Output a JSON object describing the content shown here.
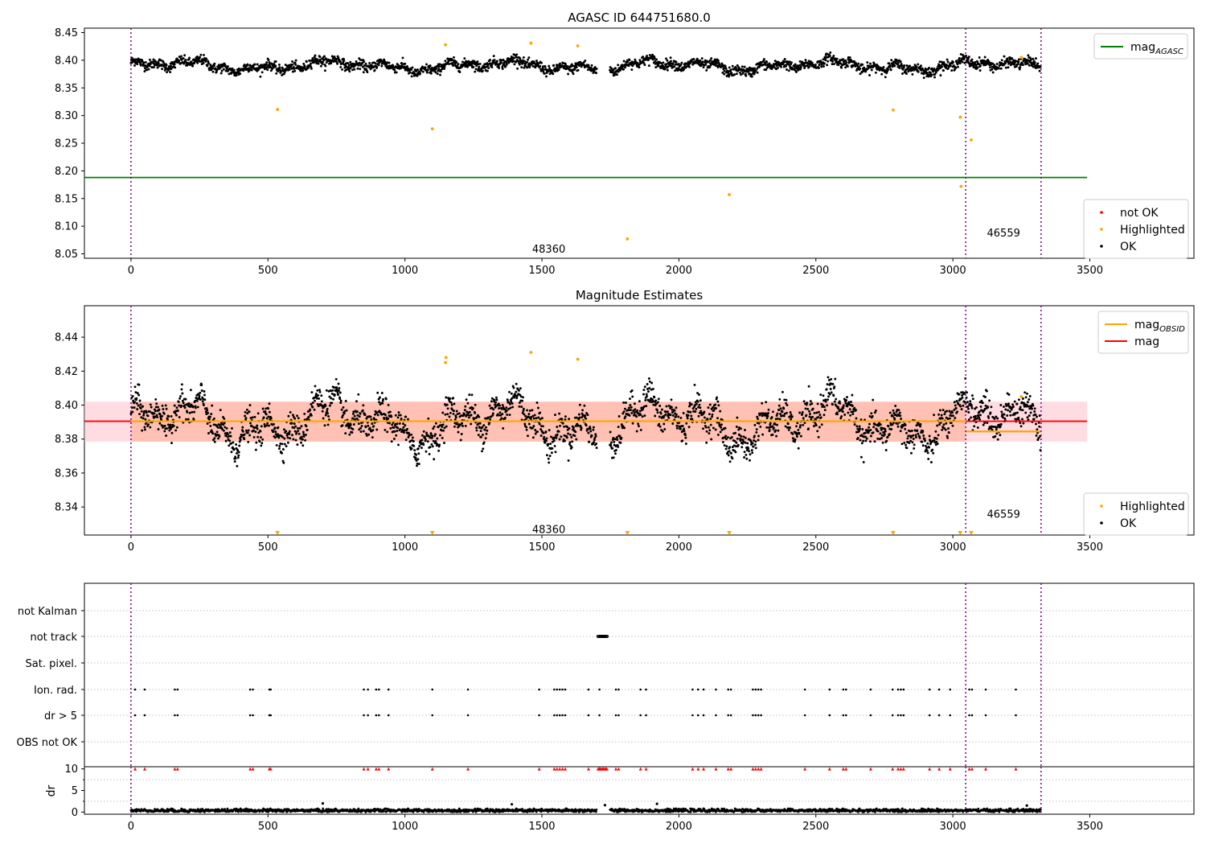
{
  "figure": {
    "background": "#ffffff"
  },
  "colors": {
    "ok": "#000000",
    "highlighted": "#ffa500",
    "not_ok": "#ff0000",
    "agasc": "#008000",
    "mag": "#ff0000",
    "obsid": "#ffa500",
    "vline": "#800080",
    "band_outer": "#ffc0cb",
    "band_inner": "#ffa07a"
  },
  "chart_data": [
    {
      "type": "scatter",
      "title": "AGASC ID 644751680.0",
      "xlim": [
        -170,
        3880
      ],
      "ylim": [
        8.042,
        8.458
      ],
      "xticks": [
        0,
        500,
        1000,
        1500,
        2000,
        2500,
        3000,
        3500
      ],
      "yticks": [
        8.05,
        8.1,
        8.15,
        8.2,
        8.25,
        8.3,
        8.35,
        8.4,
        8.45
      ],
      "ytick_labels": [
        "8.05",
        "8.10",
        "8.15",
        "8.20",
        "8.25",
        "8.30",
        "8.35",
        "8.40",
        "8.45"
      ],
      "obs_boundaries": [
        0,
        3047,
        3322
      ],
      "obs_labels": [
        {
          "text": "48360",
          "x": 1525,
          "y": 8.058
        },
        {
          "text": "46559",
          "x": 3185,
          "y": 8.087
        }
      ],
      "mag_agasc": {
        "value": 8.188,
        "x": [
          -170,
          3490
        ]
      },
      "ok_series": {
        "name": "OK",
        "x_range": [
          0,
          3320
        ],
        "typical_range": [
          8.365,
          8.415
        ],
        "baseline": 8.39
      },
      "highlighted": {
        "name": "Highlighted",
        "x": [
          535,
          1100,
          1148,
          1460,
          1631,
          1812,
          2184,
          2782,
          3027,
          3030,
          3067,
          3250
        ],
        "y": [
          8.311,
          8.276,
          8.428,
          8.431,
          8.426,
          8.077,
          8.157,
          8.31,
          8.297,
          8.172,
          8.256,
          8.405
        ]
      },
      "legend_upper": [
        {
          "label": "mag",
          "subscript": "AGASC",
          "kind": "line",
          "color": "#008000"
        }
      ],
      "legend_lower": [
        {
          "label": "not OK",
          "kind": "dot",
          "color": "#ff0000"
        },
        {
          "label": "Highlighted",
          "kind": "dot",
          "color": "#ffa500"
        },
        {
          "label": "OK",
          "kind": "dot",
          "color": "#000000"
        }
      ]
    },
    {
      "type": "scatter",
      "title": "Magnitude Estimates",
      "xlim": [
        -170,
        3880
      ],
      "ylim": [
        8.3235,
        8.4585
      ],
      "xticks": [
        0,
        500,
        1000,
        1500,
        2000,
        2500,
        3000,
        3500
      ],
      "yticks": [
        8.34,
        8.36,
        8.38,
        8.4,
        8.42,
        8.44
      ],
      "ytick_labels": [
        "8.34",
        "8.36",
        "8.38",
        "8.40",
        "8.42",
        "8.44"
      ],
      "obs_boundaries": [
        0,
        3047,
        3322
      ],
      "obs_labels": [
        {
          "text": "48360",
          "x": 1525,
          "y": 8.3265
        },
        {
          "text": "46559",
          "x": 3185,
          "y": 8.3355
        }
      ],
      "mag": {
        "value": 8.3905,
        "x": [
          -170,
          3490
        ],
        "band": [
          8.3785,
          8.402
        ]
      },
      "mag_obsid": [
        {
          "x": [
            0,
            3047
          ],
          "value": 8.3905,
          "band": [
            8.3785,
            8.402
          ]
        },
        {
          "x": [
            3047,
            3322
          ],
          "value": 8.3845
        }
      ],
      "ok_series": {
        "name": "OK",
        "x_range": [
          0,
          3320
        ],
        "typical_range": [
          8.36,
          8.42
        ],
        "baseline": 8.39
      },
      "highlighted": {
        "name": "Highlighted",
        "x": [
          1148,
          1150,
          1460,
          1631,
          3250
        ],
        "y": [
          8.425,
          8.428,
          8.431,
          8.427,
          8.405
        ]
      },
      "offscale_markers": {
        "x": [
          535,
          1100,
          1812,
          2184,
          2782,
          3027,
          3067
        ],
        "y": 8.3235
      },
      "legend_upper": [
        {
          "label": "mag",
          "subscript": "OBSID",
          "kind": "line",
          "color": "#ffa500"
        },
        {
          "label": "mag",
          "kind": "line",
          "color": "#ff0000"
        }
      ],
      "legend_lower": [
        {
          "label": "Highlighted",
          "kind": "dot",
          "color": "#ffa500"
        },
        {
          "label": "OK",
          "kind": "dot",
          "color": "#000000"
        }
      ]
    },
    {
      "type": "scatter",
      "title": "",
      "xlim": [
        -170,
        3880
      ],
      "categories": [
        "not Kalman",
        "not track",
        "Sat. pixel.",
        "Ion. rad.",
        "dr > 5",
        "OBS not OK"
      ],
      "obs_boundaries": [
        0,
        3047,
        3322
      ],
      "not_track_x": [
        1705,
        1740
      ],
      "flag_x": [
        15,
        50,
        160,
        170,
        435,
        445,
        505,
        510,
        850,
        865,
        895,
        905,
        940,
        1100,
        1230,
        1490,
        1545,
        1555,
        1565,
        1575,
        1585,
        1670,
        1710,
        1770,
        1780,
        1860,
        1880,
        2050,
        2070,
        2090,
        2135,
        2180,
        2190,
        2270,
        2280,
        2290,
        2300,
        2460,
        2550,
        2600,
        2610,
        2700,
        2780,
        2800,
        2810,
        2820,
        2915,
        2950,
        2990,
        3060,
        3070,
        3120,
        3230
      ]
    },
    {
      "type": "scatter",
      "title": "",
      "ylabel": "dr",
      "xlim": [
        -170,
        3880
      ],
      "ylim": [
        -0.5,
        10.5
      ],
      "xticks": [
        0,
        500,
        1000,
        1500,
        2000,
        2500,
        3000,
        3500
      ],
      "yticks": [
        0,
        5,
        10
      ],
      "ytick_labels": [
        "0",
        "5",
        "10"
      ],
      "obs_boundaries": [
        0,
        3047,
        3322
      ],
      "capped_at": 10,
      "dr_range": [
        0.0,
        0.8
      ],
      "dr_bumps": [
        {
          "x": 700,
          "y": 2.0
        },
        {
          "x": 1390,
          "y": 1.8
        },
        {
          "x": 1730,
          "y": 1.6
        },
        {
          "x": 1920,
          "y": 1.9
        },
        {
          "x": 3270,
          "y": 1.5
        }
      ]
    }
  ]
}
